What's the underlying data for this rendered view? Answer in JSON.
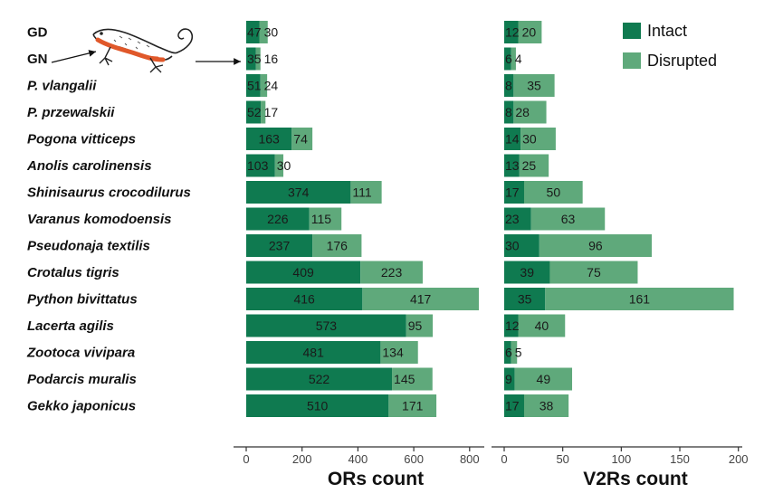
{
  "chart_data": [
    {
      "type": "bar",
      "stacked": true,
      "orientation": "horizontal",
      "xlabel": "ORs count",
      "xlim": [
        0,
        850
      ],
      "xticks": [
        0,
        200,
        400,
        600,
        800
      ],
      "categories": [
        "GD",
        "GN",
        "P. vlangalii",
        "P. przewalskii",
        "Pogona vitticeps",
        "Anolis carolinensis",
        "Shinisaurus crocodilurus",
        "Varanus komodoensis",
        "Pseudonaja textilis",
        "Crotalus tigris",
        "Python bivittatus",
        "Lacerta agilis",
        "Zootoca vivipara",
        "Podarcis muralis",
        "Gekko japonicus"
      ],
      "series": [
        {
          "name": "Intact",
          "values": [
            47,
            35,
            51,
            52,
            163,
            103,
            374,
            226,
            237,
            409,
            416,
            573,
            481,
            522,
            510
          ]
        },
        {
          "name": "Disrupted",
          "values": [
            30,
            16,
            24,
            17,
            74,
            30,
            111,
            115,
            176,
            223,
            417,
            95,
            134,
            145,
            171
          ]
        }
      ]
    },
    {
      "type": "bar",
      "stacked": true,
      "orientation": "horizontal",
      "xlabel": "V2Rs count",
      "xlim": [
        0,
        200
      ],
      "xticks": [
        0,
        50,
        100,
        150,
        200
      ],
      "categories": [
        "GD",
        "GN",
        "P. vlangalii",
        "P. przewalskii",
        "Pogona vitticeps",
        "Anolis carolinensis",
        "Shinisaurus crocodilurus",
        "Varanus komodoensis",
        "Pseudonaja textilis",
        "Crotalus tigris",
        "Python bivittatus",
        "Lacerta agilis",
        "Zootoca vivipara",
        "Podarcis muralis",
        "Gekko japonicus"
      ],
      "series": [
        {
          "name": "Intact",
          "values": [
            12,
            6,
            8,
            8,
            14,
            13,
            17,
            23,
            30,
            39,
            35,
            12,
            6,
            9,
            17
          ]
        },
        {
          "name": "Disrupted",
          "values": [
            20,
            4,
            35,
            28,
            30,
            25,
            50,
            63,
            96,
            75,
            161,
            40,
            5,
            49,
            38
          ]
        }
      ]
    }
  ],
  "legend": {
    "placement": "top-right",
    "items": [
      {
        "label": "Intact",
        "color": "#0f7a50"
      },
      {
        "label": "Disrupted",
        "color": "#5fa97b"
      }
    ]
  },
  "colors": {
    "intact": "#0f7a50",
    "disrupted": "#5fa97b",
    "gd_label": "#7a5a3a",
    "gn_label": "#e08a1e"
  },
  "illustration": {
    "icon": "lizard-icon"
  }
}
